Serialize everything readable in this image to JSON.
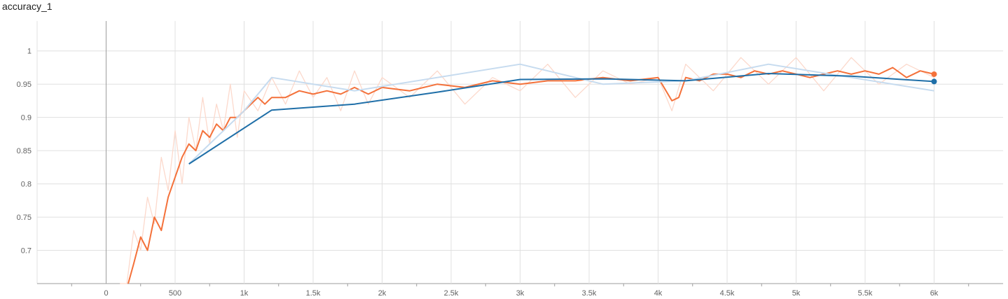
{
  "chart_data": {
    "type": "line",
    "title": "accuracy_1",
    "xlabel": "",
    "ylabel": "",
    "xlim": [
      -500,
      6500
    ],
    "ylim": [
      0.65,
      1.045
    ],
    "x_ticks": [
      0,
      500,
      1000,
      1500,
      2000,
      2500,
      3000,
      3500,
      4000,
      4500,
      5000,
      5500,
      6000
    ],
    "x_tick_labels": [
      "0",
      "500",
      "1k",
      "1.5k",
      "2k",
      "2.5k",
      "3k",
      "3.5k",
      "4k",
      "4.5k",
      "5k",
      "5.5k",
      "6k"
    ],
    "y_ticks": [
      0.7,
      0.75,
      0.8,
      0.85,
      0.9,
      0.95,
      1
    ],
    "y_tick_labels": [
      "0.7",
      "0.75",
      "0.8",
      "0.85",
      "0.9",
      "0.95",
      "1"
    ],
    "grid": true,
    "legend": "none",
    "series": [
      {
        "style": "raw",
        "color": "#fcd9cc",
        "x": [
          100,
          150,
          200,
          250,
          300,
          350,
          400,
          450,
          500,
          550,
          600,
          650,
          700,
          750,
          800,
          850,
          900,
          950,
          1000,
          1100,
          1200,
          1300,
          1400,
          1500,
          1600,
          1700,
          1800,
          1900,
          2000,
          2200,
          2400,
          2600,
          2800,
          3000,
          3200,
          3400,
          3600,
          3800,
          4000,
          4100,
          4200,
          4400,
          4600,
          4800,
          5000,
          5200,
          5400,
          5600,
          5800,
          6000
        ],
        "y": [
          0.62,
          0.65,
          0.73,
          0.7,
          0.78,
          0.74,
          0.84,
          0.79,
          0.88,
          0.8,
          0.9,
          0.85,
          0.93,
          0.86,
          0.92,
          0.88,
          0.95,
          0.87,
          0.94,
          0.91,
          0.96,
          0.92,
          0.97,
          0.93,
          0.96,
          0.91,
          0.97,
          0.92,
          0.96,
          0.93,
          0.97,
          0.92,
          0.96,
          0.94,
          0.98,
          0.93,
          0.97,
          0.95,
          0.96,
          0.91,
          0.98,
          0.94,
          0.99,
          0.95,
          0.99,
          0.94,
          0.99,
          0.95,
          0.98,
          0.96
        ]
      },
      {
        "style": "smoothed",
        "color": "#f4713a",
        "x": [
          160,
          200,
          250,
          300,
          350,
          400,
          450,
          500,
          550,
          600,
          650,
          700,
          750,
          800,
          850,
          900,
          950,
          1000,
          1050,
          1100,
          1150,
          1200,
          1300,
          1400,
          1500,
          1600,
          1700,
          1800,
          1900,
          2000,
          2200,
          2400,
          2600,
          2800,
          3000,
          3200,
          3400,
          3600,
          3800,
          4000,
          4100,
          4150,
          4200,
          4300,
          4400,
          4500,
          4600,
          4700,
          4800,
          4900,
          5000,
          5100,
          5200,
          5300,
          5400,
          5500,
          5600,
          5700,
          5800,
          5900,
          6000
        ],
        "y": [
          0.63,
          0.68,
          0.72,
          0.7,
          0.75,
          0.73,
          0.78,
          0.81,
          0.84,
          0.86,
          0.85,
          0.88,
          0.87,
          0.89,
          0.88,
          0.9,
          0.9,
          0.91,
          0.92,
          0.93,
          0.92,
          0.93,
          0.93,
          0.94,
          0.935,
          0.94,
          0.935,
          0.945,
          0.935,
          0.945,
          0.94,
          0.95,
          0.945,
          0.955,
          0.95,
          0.955,
          0.955,
          0.96,
          0.955,
          0.96,
          0.925,
          0.93,
          0.96,
          0.955,
          0.965,
          0.965,
          0.96,
          0.97,
          0.965,
          0.97,
          0.965,
          0.96,
          0.965,
          0.97,
          0.965,
          0.97,
          0.965,
          0.975,
          0.96,
          0.97,
          0.965
        ]
      },
      {
        "style": "eval-raw",
        "color": "#c6dbef",
        "x": [
          600,
          1000,
          1200,
          1800,
          2400,
          3000,
          3600,
          4200,
          4800,
          5400,
          6000
        ],
        "y": [
          0.83,
          0.91,
          0.96,
          0.94,
          0.96,
          0.98,
          0.95,
          0.955,
          0.98,
          0.96,
          0.94
        ]
      },
      {
        "style": "eval-smoothed",
        "color": "#1f6fa8",
        "x": [
          600,
          1200,
          1800,
          2400,
          3000,
          3600,
          4200,
          4800,
          5400,
          6000
        ],
        "y": [
          0.83,
          0.911,
          0.92,
          0.938,
          0.957,
          0.958,
          0.955,
          0.966,
          0.962,
          0.954
        ]
      }
    ]
  },
  "end_markers": [
    {
      "series": "smoothed",
      "x": 6000,
      "y": 0.965,
      "color": "#f4713a"
    },
    {
      "series": "eval-smoothed",
      "x": 6000,
      "y": 0.954,
      "color": "#1f6fa8"
    }
  ],
  "colors": {
    "grid": "#e0e0e0",
    "zero_line": "#9e9e9e",
    "axis": "#9e9e9e",
    "tick_text": "#616161",
    "title": "#212121"
  }
}
